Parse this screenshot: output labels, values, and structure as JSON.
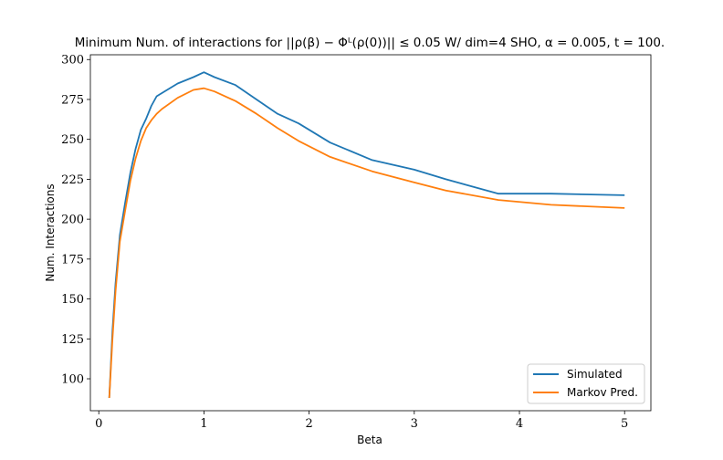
{
  "chart_data": {
    "type": "line",
    "title": "Minimum Num. of interactions for ||ρ(β) − Φᴸ(ρ(0))|| ≤ 0.05 W/ dim=4 SHO, α = 0.005, t = 100.",
    "xlabel": "Beta",
    "ylabel": "Num. Interactions",
    "xlim": [
      -0.08,
      5.25
    ],
    "ylim": [
      80,
      303
    ],
    "xticks": [
      0,
      1,
      2,
      3,
      4,
      5
    ],
    "yticks": [
      100,
      125,
      150,
      175,
      200,
      225,
      250,
      275,
      300
    ],
    "grid": false,
    "legend_position": "lower-right",
    "series": [
      {
        "name": "Simulated",
        "color": "#1f77b4",
        "x": [
          0.1,
          0.13,
          0.16,
          0.2,
          0.25,
          0.3,
          0.35,
          0.4,
          0.45,
          0.5,
          0.55,
          0.6,
          0.75,
          0.9,
          1.0,
          1.1,
          1.3,
          1.5,
          1.7,
          1.9,
          2.2,
          2.6,
          3.0,
          3.3,
          3.8,
          4.3,
          5.0
        ],
        "y": [
          88,
          130,
          160,
          190,
          210,
          229,
          244,
          256,
          263,
          271,
          277,
          279,
          285,
          289,
          292,
          289,
          284,
          275,
          266,
          260,
          248,
          237,
          231,
          225,
          216,
          216,
          215
        ]
      },
      {
        "name": "Markov Pred.",
        "color": "#ff7f0e",
        "x": [
          0.1,
          0.13,
          0.16,
          0.2,
          0.25,
          0.3,
          0.35,
          0.4,
          0.45,
          0.5,
          0.55,
          0.6,
          0.75,
          0.9,
          1.0,
          1.1,
          1.3,
          1.5,
          1.7,
          1.9,
          2.2,
          2.6,
          3.0,
          3.3,
          3.8,
          4.3,
          5.0
        ],
        "y": [
          88,
          125,
          155,
          186,
          205,
          224,
          238,
          249,
          257,
          262,
          266,
          269,
          276,
          281,
          282,
          280,
          274,
          266,
          257,
          249,
          239,
          230,
          223,
          218,
          212,
          209,
          207
        ]
      }
    ]
  }
}
